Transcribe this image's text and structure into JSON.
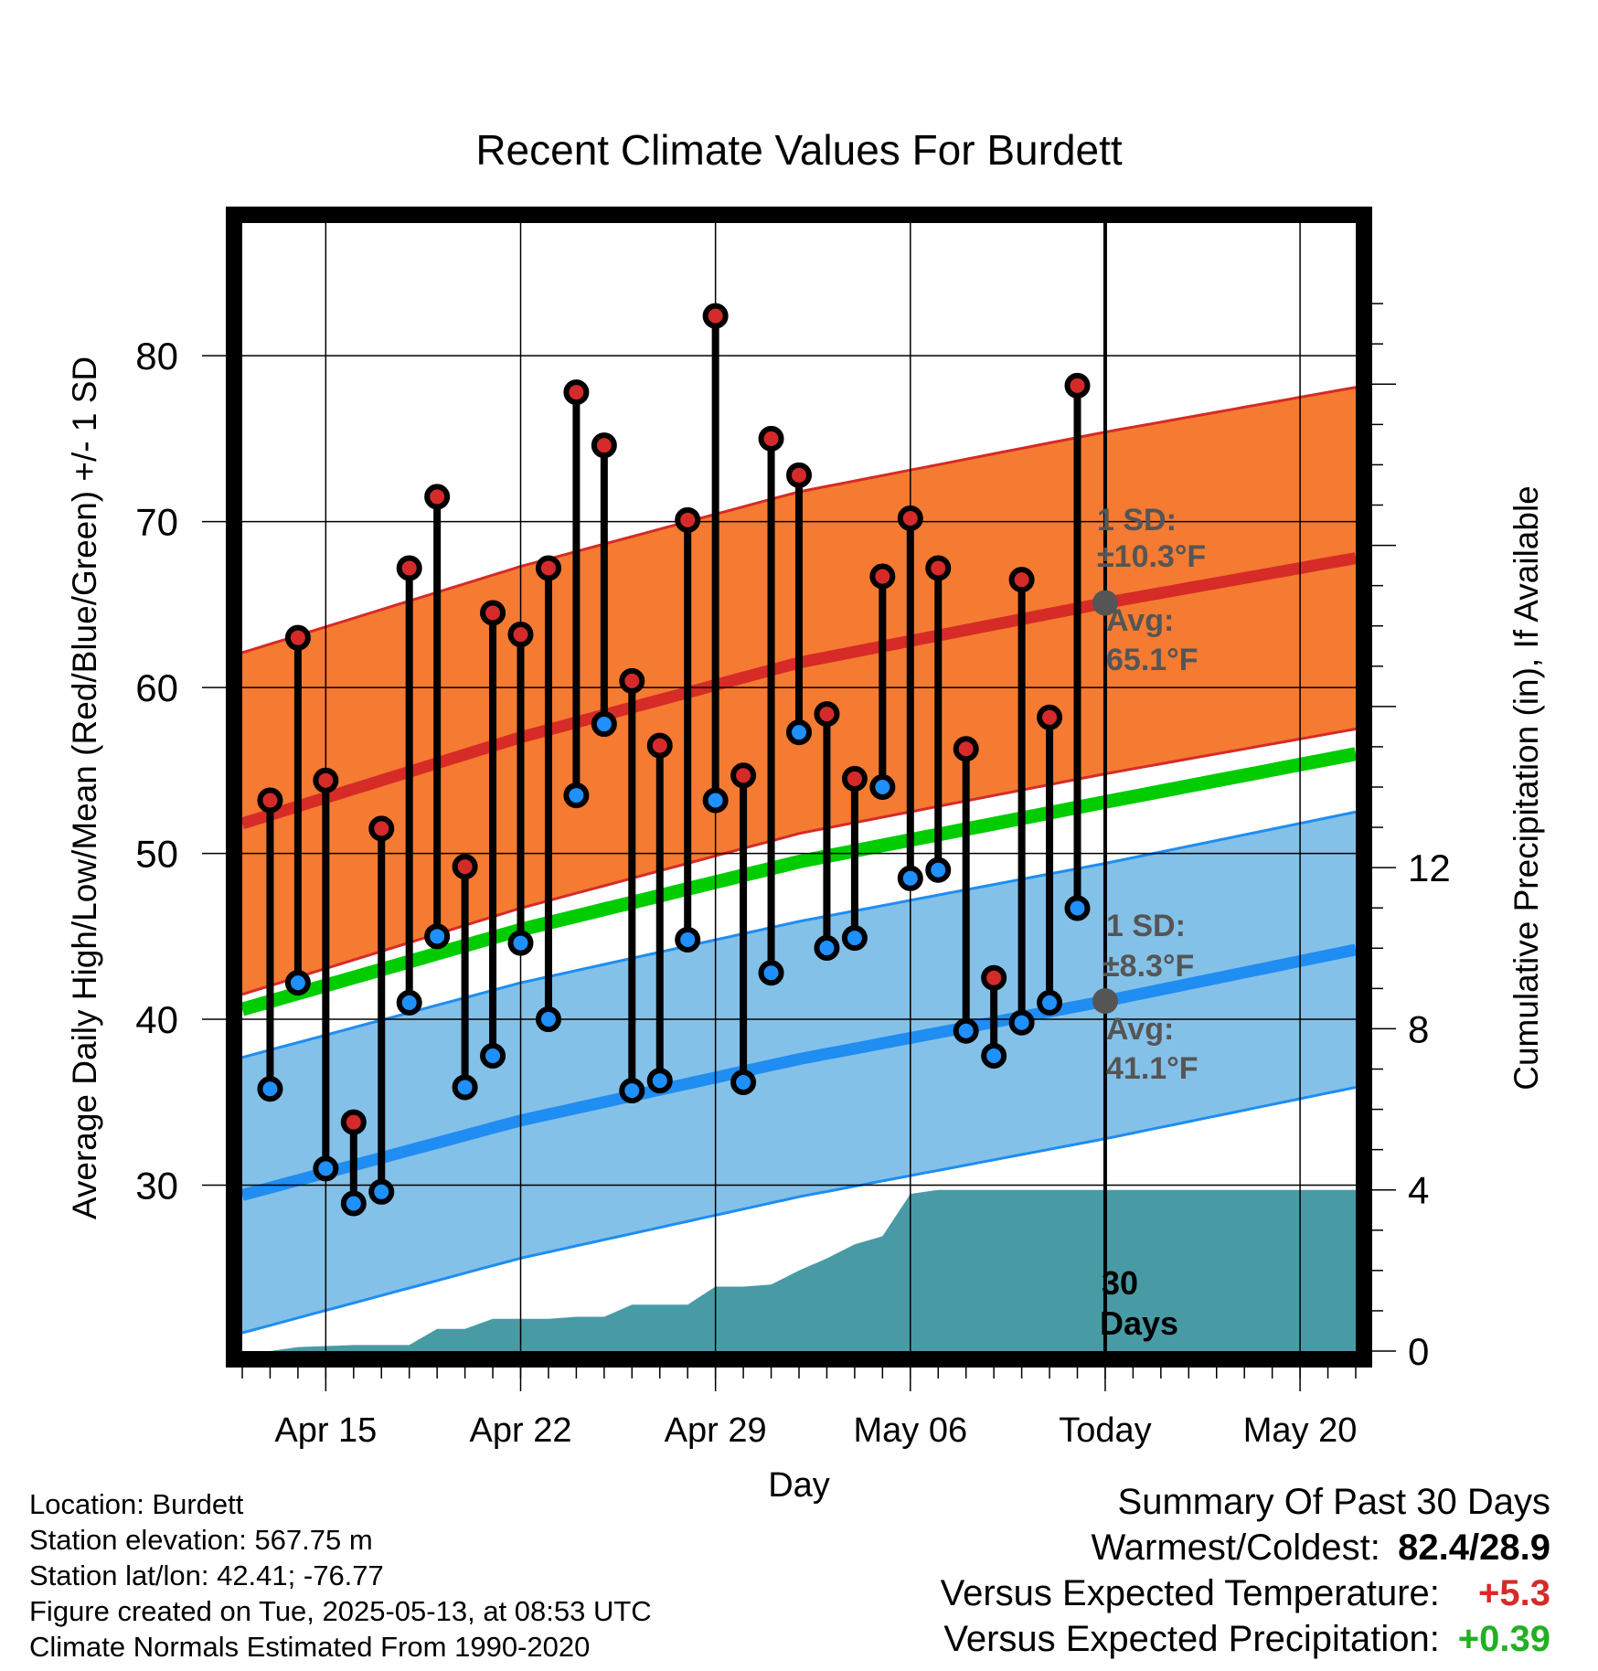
{
  "chart_data": {
    "type": "line",
    "title": "Recent Climate Values For Burdett",
    "xlabel": "Day",
    "ylabel": "Average Daily High/Low/Mean (Red/Blue/Green) +/- 1 SD",
    "y2label": "Cumulative Precipitation (in), If Available",
    "ylim": [
      20,
      88
    ],
    "y2lim": [
      0,
      28
    ],
    "yticks": [
      30,
      40,
      50,
      60,
      70,
      80
    ],
    "y2ticks": [
      0,
      4,
      8,
      12
    ],
    "xrange": [
      "2025-04-12",
      "2025-05-22"
    ],
    "xtick_labels": [
      {
        "date": "2025-04-15",
        "label": "Apr 15"
      },
      {
        "date": "2025-04-22",
        "label": "Apr 22"
      },
      {
        "date": "2025-04-29",
        "label": "Apr 29"
      },
      {
        "date": "2025-05-06",
        "label": "May 06"
      },
      {
        "date": "2025-05-13",
        "label": "Today"
      },
      {
        "date": "2025-05-20",
        "label": "May 20"
      }
    ],
    "daily": [
      {
        "date": "2025-04-13",
        "high": 53.2,
        "low": 35.8
      },
      {
        "date": "2025-04-14",
        "high": 63.0,
        "low": 42.2
      },
      {
        "date": "2025-04-15",
        "high": 54.4,
        "low": 31.0
      },
      {
        "date": "2025-04-16",
        "high": 33.8,
        "low": 28.9
      },
      {
        "date": "2025-04-17",
        "high": 51.5,
        "low": 29.6
      },
      {
        "date": "2025-04-18",
        "high": 67.2,
        "low": 41.0
      },
      {
        "date": "2025-04-19",
        "high": 71.5,
        "low": 45.0
      },
      {
        "date": "2025-04-20",
        "high": 49.2,
        "low": 35.9
      },
      {
        "date": "2025-04-21",
        "high": 64.5,
        "low": 37.8
      },
      {
        "date": "2025-04-22",
        "high": 63.2,
        "low": 44.6
      },
      {
        "date": "2025-04-23",
        "high": 67.2,
        "low": 40.0
      },
      {
        "date": "2025-04-24",
        "high": 77.8,
        "low": 53.5
      },
      {
        "date": "2025-04-25",
        "high": 74.6,
        "low": 57.8
      },
      {
        "date": "2025-04-26",
        "high": 60.4,
        "low": 35.7
      },
      {
        "date": "2025-04-27",
        "high": 56.5,
        "low": 36.3
      },
      {
        "date": "2025-04-28",
        "high": 70.1,
        "low": 44.8
      },
      {
        "date": "2025-04-29",
        "high": 82.4,
        "low": 53.2
      },
      {
        "date": "2025-04-30",
        "high": 54.7,
        "low": 36.2
      },
      {
        "date": "2025-05-01",
        "high": 75.0,
        "low": 42.8
      },
      {
        "date": "2025-05-02",
        "high": 72.8,
        "low": 57.3
      },
      {
        "date": "2025-05-03",
        "high": 58.4,
        "low": 44.3
      },
      {
        "date": "2025-05-04",
        "high": 54.5,
        "low": 44.9
      },
      {
        "date": "2025-05-05",
        "high": 66.7,
        "low": 54.0
      },
      {
        "date": "2025-05-06",
        "high": 70.2,
        "low": 48.5
      },
      {
        "date": "2025-05-07",
        "high": 67.2,
        "low": 49.0
      },
      {
        "date": "2025-05-08",
        "high": 56.3,
        "low": 39.3
      },
      {
        "date": "2025-05-09",
        "high": 42.5,
        "low": 37.8
      },
      {
        "date": "2025-05-10",
        "high": 66.5,
        "low": 39.8
      },
      {
        "date": "2025-05-11",
        "high": 58.2,
        "low": 41.0
      },
      {
        "date": "2025-05-12",
        "high": 78.2,
        "low": 46.7
      }
    ],
    "normals": {
      "dates": [
        "2025-04-12",
        "2025-04-22",
        "2025-05-02",
        "2025-05-13",
        "2025-05-22"
      ],
      "mean_high": [
        51.8,
        57.0,
        61.5,
        65.1,
        67.8
      ],
      "mean_low": [
        29.4,
        33.9,
        37.6,
        41.1,
        44.2
      ],
      "mean_avg": [
        40.6,
        45.4,
        49.5,
        53.1,
        56.0
      ]
    },
    "high_sd": 10.3,
    "low_sd": 8.3,
    "precip_cumulative": [
      {
        "date": "2025-04-12",
        "value": 0.0
      },
      {
        "date": "2025-04-13",
        "value": 0.0
      },
      {
        "date": "2025-04-14",
        "value": 0.1
      },
      {
        "date": "2025-04-16",
        "value": 0.15
      },
      {
        "date": "2025-04-18",
        "value": 0.15
      },
      {
        "date": "2025-04-19",
        "value": 0.55
      },
      {
        "date": "2025-04-20",
        "value": 0.55
      },
      {
        "date": "2025-04-21",
        "value": 0.8
      },
      {
        "date": "2025-04-23",
        "value": 0.8
      },
      {
        "date": "2025-04-24",
        "value": 0.85
      },
      {
        "date": "2025-04-25",
        "value": 0.85
      },
      {
        "date": "2025-04-26",
        "value": 1.15
      },
      {
        "date": "2025-04-28",
        "value": 1.15
      },
      {
        "date": "2025-04-29",
        "value": 1.6
      },
      {
        "date": "2025-04-30",
        "value": 1.6
      },
      {
        "date": "2025-05-01",
        "value": 1.65
      },
      {
        "date": "2025-05-02",
        "value": 2.0
      },
      {
        "date": "2025-05-03",
        "value": 2.3
      },
      {
        "date": "2025-05-04",
        "value": 2.65
      },
      {
        "date": "2025-05-05",
        "value": 2.85
      },
      {
        "date": "2025-05-06",
        "value": 3.9
      },
      {
        "date": "2025-05-07",
        "value": 4.0
      },
      {
        "date": "2025-05-22",
        "value": 4.0
      }
    ],
    "today_date": "2025-05-13",
    "today_high_mean": 65.1,
    "today_low_mean": 41.1,
    "colors": {
      "high_band": "#f47b31",
      "high_band_edge": "#d62b27",
      "high_mean": "#d62b27",
      "low_band": "#84c1e8",
      "low_band_edge": "#1f8df2",
      "low_mean": "#1f8df2",
      "avg_mean": "#00cc00",
      "precip": "#489ba5",
      "high_marker": "#d52a2a",
      "low_marker": "#1e90ff",
      "annotation": "#555555"
    }
  },
  "annotations": {
    "high_sd_label": "1 SD:",
    "high_sd_value": "±10.3°F",
    "high_avg_label": "Avg:",
    "high_avg_value": "65.1°F",
    "low_sd_label": "1 SD:",
    "low_sd_value": "±8.3°F",
    "low_avg_label": "Avg:",
    "low_avg_value": "41.1°F",
    "days_number": "30",
    "days_label": "Days"
  },
  "footer": {
    "location": "Location: Burdett",
    "elevation": "Station elevation: 567.75 m",
    "latlon": "Station lat/lon: 42.41; -76.77",
    "created": "Figure created on Tue, 2025-05-13, at 08:53 UTC",
    "normals": "Climate Normals Estimated From 1990-2020"
  },
  "summary": {
    "heading": "Summary Of Past 30 Days",
    "warm_cold_label": "Warmest/Coldest:",
    "warm_cold_value": "82.4/28.9",
    "temp_label": "Versus Expected Temperature:",
    "temp_value": "+5.3",
    "temp_color": "#d62b27",
    "precip_label": "Versus Expected Precipitation:",
    "precip_value": "+0.39",
    "precip_color": "#22b022"
  }
}
